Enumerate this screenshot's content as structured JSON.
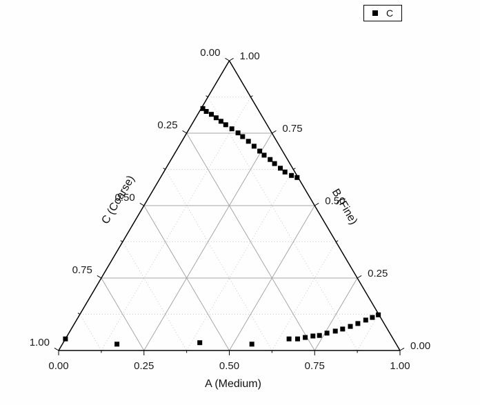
{
  "legend": {
    "items": [
      {
        "label": "C",
        "marker": "filled-square",
        "color": "#000000"
      }
    ]
  },
  "colors": {
    "axis": "#000000",
    "text": "#1a1a1a",
    "grid_major": "#a6a6a6",
    "grid_minor": "#c8c8c8",
    "background": "#fefefe",
    "marker": "#000000"
  },
  "chart_data": {
    "type": "scatter",
    "subtype": "ternary",
    "title": "",
    "axes": {
      "bottom": {
        "label": "A (Medium)",
        "ticks": [
          "0.00",
          "0.25",
          "0.50",
          "0.75",
          "1.00"
        ],
        "tick_values": [
          0,
          0.25,
          0.5,
          0.75,
          1
        ]
      },
      "left": {
        "label": "C (Coarse)",
        "ticks": [
          "0.00",
          "0.25",
          "0.50",
          "0.75",
          "1.00"
        ],
        "tick_values": [
          0,
          0.25,
          0.5,
          0.75,
          1
        ]
      },
      "right": {
        "label": "B (Fine)",
        "ticks": [
          "1.00",
          "0.75",
          "0.50",
          "0.25",
          "0.00"
        ],
        "tick_values": [
          1,
          0.75,
          0.5,
          0.25,
          0
        ]
      }
    },
    "grid": {
      "major_step": 0.25,
      "minor_step": 0.125,
      "major_style": "solid",
      "minor_style": "dotted"
    },
    "series": [
      {
        "name": "C",
        "marker": "square",
        "color": "#000000",
        "points": [
          {
            "a": 0.005,
            "b": 0.835,
            "c": 0.16
          },
          {
            "a": 0.02,
            "b": 0.825,
            "c": 0.155
          },
          {
            "a": 0.04,
            "b": 0.815,
            "c": 0.145
          },
          {
            "a": 0.06,
            "b": 0.803,
            "c": 0.137
          },
          {
            "a": 0.08,
            "b": 0.791,
            "c": 0.129
          },
          {
            "a": 0.1,
            "b": 0.779,
            "c": 0.121
          },
          {
            "a": 0.125,
            "b": 0.765,
            "c": 0.11
          },
          {
            "a": 0.15,
            "b": 0.751,
            "c": 0.099
          },
          {
            "a": 0.17,
            "b": 0.738,
            "c": 0.092
          },
          {
            "a": 0.195,
            "b": 0.722,
            "c": 0.083
          },
          {
            "a": 0.22,
            "b": 0.705,
            "c": 0.075
          },
          {
            "a": 0.245,
            "b": 0.688,
            "c": 0.067
          },
          {
            "a": 0.265,
            "b": 0.674,
            "c": 0.061
          },
          {
            "a": 0.29,
            "b": 0.659,
            "c": 0.051
          },
          {
            "a": 0.31,
            "b": 0.645,
            "c": 0.045
          },
          {
            "a": 0.335,
            "b": 0.629,
            "c": 0.036
          },
          {
            "a": 0.355,
            "b": 0.616,
            "c": 0.029
          },
          {
            "a": 0.38,
            "b": 0.604,
            "c": 0.016
          },
          {
            "a": 0.4,
            "b": 0.597,
            "c": 0.003
          },
          {
            "a": 0.655,
            "b": 0.04,
            "c": 0.305
          },
          {
            "a": 0.68,
            "b": 0.04,
            "c": 0.28
          },
          {
            "a": 0.7,
            "b": 0.045,
            "c": 0.255
          },
          {
            "a": 0.72,
            "b": 0.05,
            "c": 0.23
          },
          {
            "a": 0.738,
            "b": 0.052,
            "c": 0.21
          },
          {
            "a": 0.756,
            "b": 0.06,
            "c": 0.184
          },
          {
            "a": 0.777,
            "b": 0.067,
            "c": 0.156
          },
          {
            "a": 0.795,
            "b": 0.074,
            "c": 0.131
          },
          {
            "a": 0.813,
            "b": 0.083,
            "c": 0.104
          },
          {
            "a": 0.83,
            "b": 0.093,
            "c": 0.077
          },
          {
            "a": 0.847,
            "b": 0.105,
            "c": 0.048
          },
          {
            "a": 0.862,
            "b": 0.114,
            "c": 0.024
          },
          {
            "a": 0.875,
            "b": 0.123,
            "c": 0.002
          },
          {
            "a": 0.0,
            "b": 0.04,
            "c": 0.96
          },
          {
            "a": 0.16,
            "b": 0.022,
            "c": 0.818
          },
          {
            "a": 0.4,
            "b": 0.027,
            "c": 0.573
          },
          {
            "a": 0.555,
            "b": 0.022,
            "c": 0.423
          }
        ]
      }
    ]
  }
}
